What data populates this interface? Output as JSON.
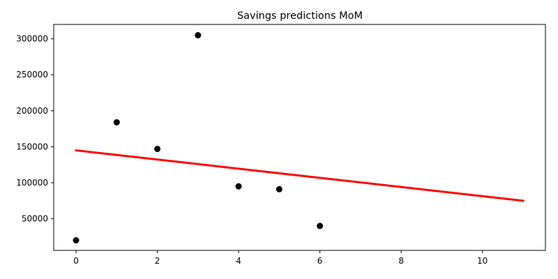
{
  "chart_data": {
    "type": "scatter",
    "title": "Savings predictions MoM",
    "xlabel": "",
    "ylabel": "",
    "xlim": [
      -0.55,
      11.55
    ],
    "ylim": [
      6000,
      320000
    ],
    "x_ticks": [
      0,
      2,
      4,
      6,
      8,
      10
    ],
    "y_ticks": [
      50000,
      100000,
      150000,
      200000,
      250000,
      300000
    ],
    "x_tick_labels": [
      "0",
      "2",
      "4",
      "6",
      "8",
      "10"
    ],
    "y_tick_labels": [
      "50000",
      "100000",
      "150000",
      "200000",
      "250000",
      "300000"
    ],
    "grid": false,
    "series": [
      {
        "kind": "scatter",
        "color": "#000000",
        "points": [
          {
            "x": 0,
            "y": 20000
          },
          {
            "x": 1,
            "y": 184000
          },
          {
            "x": 2,
            "y": 147000
          },
          {
            "x": 3,
            "y": 305000
          },
          {
            "x": 4,
            "y": 95000
          },
          {
            "x": 5,
            "y": 91000
          },
          {
            "x": 6,
            "y": 40000
          }
        ]
      },
      {
        "kind": "line",
        "color": "#ff0000",
        "points": [
          {
            "x": 0,
            "y": 145000
          },
          {
            "x": 11,
            "y": 75000
          }
        ]
      }
    ]
  }
}
